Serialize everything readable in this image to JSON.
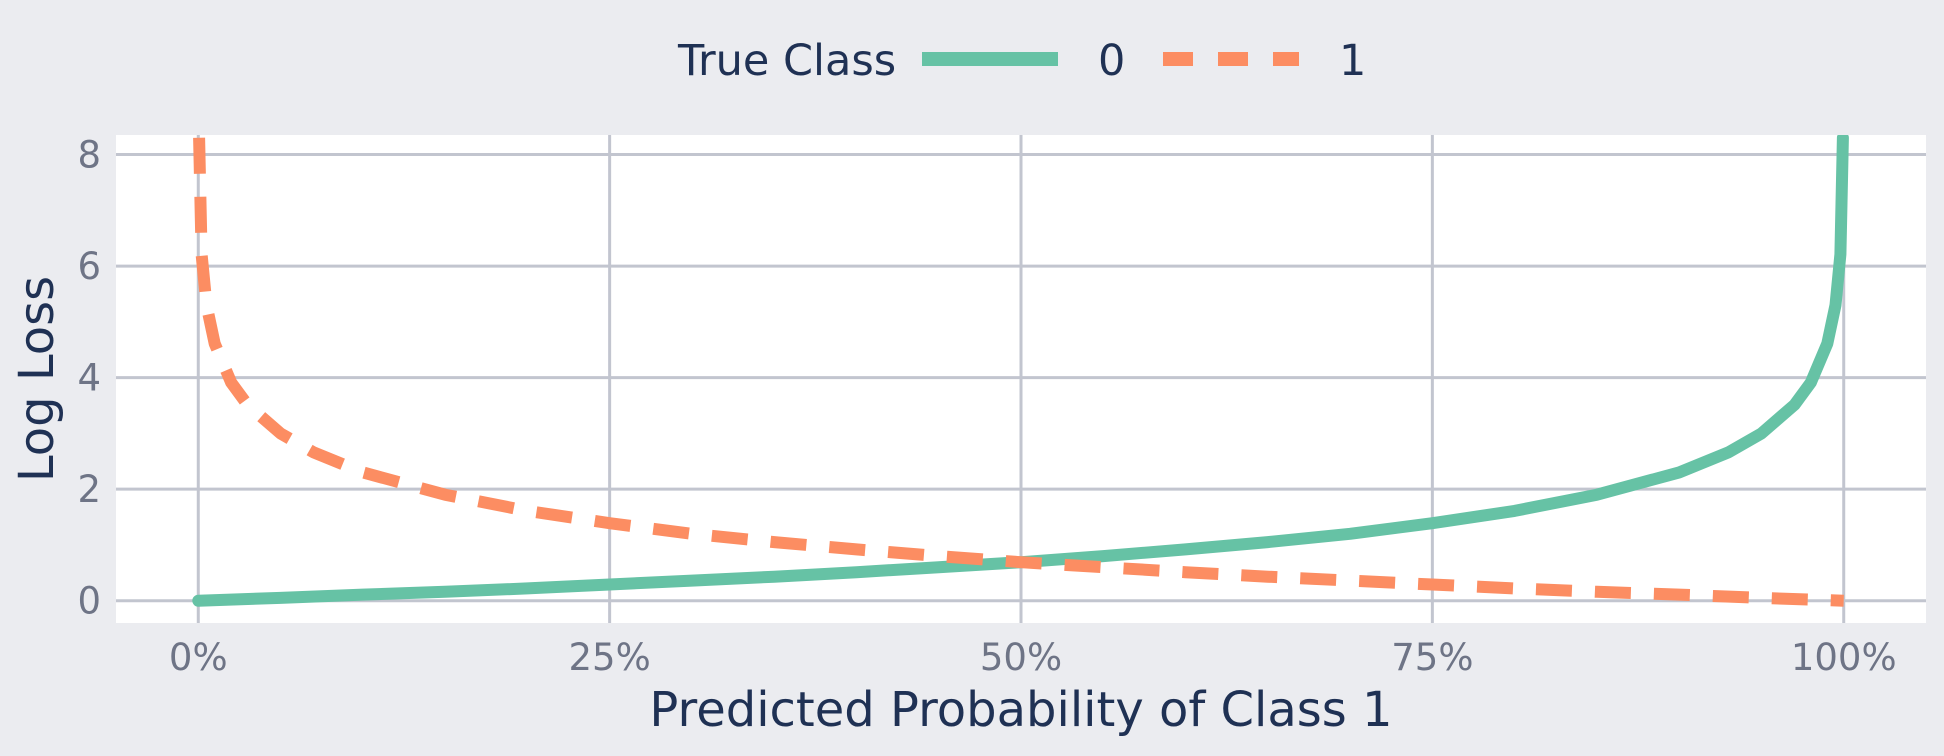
{
  "chart_data": {
    "type": "line",
    "title": "",
    "xlabel": "Predicted Probability of Class 1",
    "ylabel": "Log Loss",
    "xlim": [
      -0.05,
      1.05
    ],
    "ylim": [
      -0.4,
      8.35
    ],
    "x_ticks": [
      0,
      0.25,
      0.5,
      0.75,
      1.0
    ],
    "x_tick_labels": [
      "0%",
      "25%",
      "50%",
      "75%",
      "100%"
    ],
    "y_ticks": [
      0,
      2,
      4,
      6,
      8
    ],
    "y_tick_labels": [
      "0",
      "2",
      "4",
      "6",
      "8"
    ],
    "grid": true,
    "legend": {
      "title": "True Class",
      "position": "top-center",
      "orientation": "horizontal"
    },
    "series": [
      {
        "name": "0",
        "color": "#66C2A5",
        "dash": "solid",
        "x": [
          0.0,
          0.05,
          0.1,
          0.15,
          0.2,
          0.25,
          0.3,
          0.35,
          0.4,
          0.45,
          0.5,
          0.55,
          0.6,
          0.65,
          0.7,
          0.75,
          0.8,
          0.85,
          0.9,
          0.93,
          0.95,
          0.97,
          0.98,
          0.99,
          0.995,
          0.998,
          0.9995
        ],
        "y": [
          0.0,
          0.05,
          0.11,
          0.16,
          0.22,
          0.29,
          0.36,
          0.43,
          0.51,
          0.6,
          0.69,
          0.8,
          0.92,
          1.05,
          1.2,
          1.39,
          1.61,
          1.9,
          2.3,
          2.66,
          3.0,
          3.51,
          3.91,
          4.61,
          5.3,
          6.21,
          8.3
        ]
      },
      {
        "name": "1",
        "color": "#FC8D62",
        "dash": "dash",
        "x": [
          0.0005,
          0.002,
          0.005,
          0.01,
          0.02,
          0.03,
          0.05,
          0.07,
          0.1,
          0.15,
          0.2,
          0.25,
          0.3,
          0.35,
          0.4,
          0.45,
          0.5,
          0.55,
          0.6,
          0.65,
          0.7,
          0.75,
          0.8,
          0.85,
          0.9,
          0.95,
          1.0
        ],
        "y": [
          8.3,
          6.21,
          5.3,
          4.61,
          3.91,
          3.51,
          3.0,
          2.66,
          2.3,
          1.9,
          1.61,
          1.39,
          1.2,
          1.05,
          0.92,
          0.8,
          0.69,
          0.6,
          0.51,
          0.43,
          0.36,
          0.29,
          0.22,
          0.16,
          0.11,
          0.05,
          0.0
        ]
      }
    ]
  }
}
